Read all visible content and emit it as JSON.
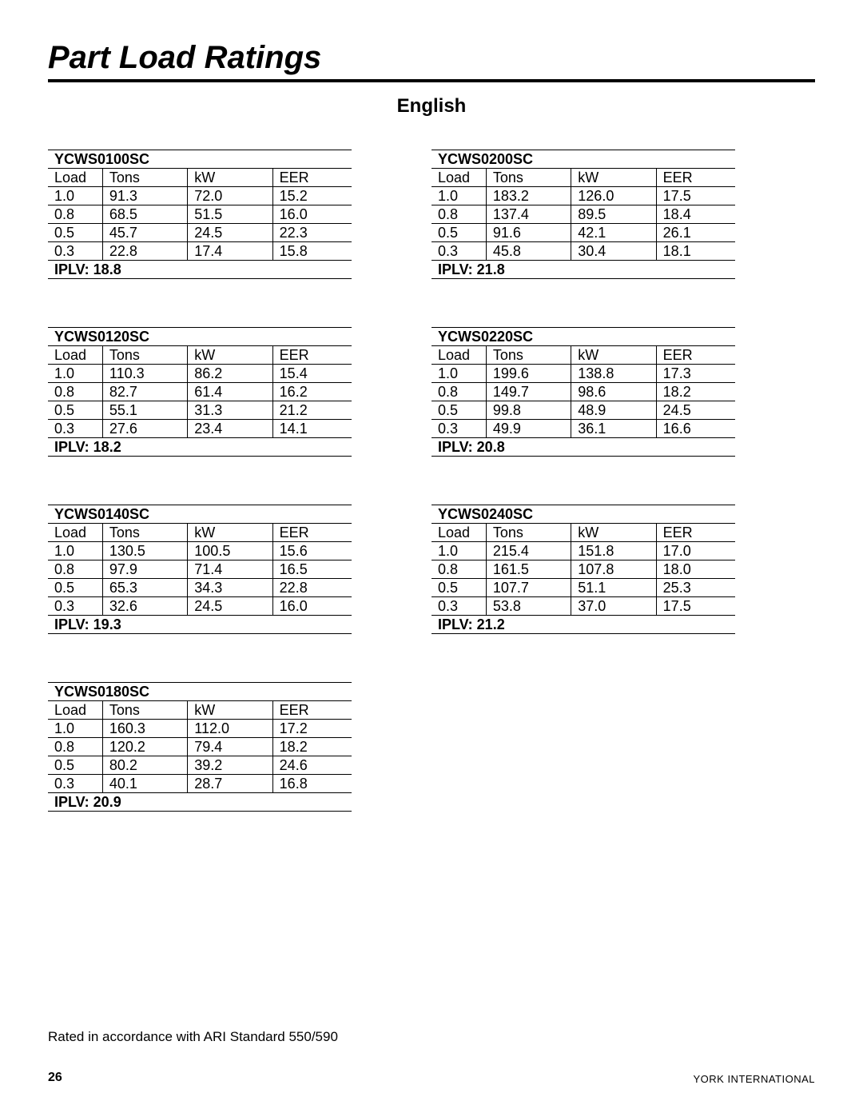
{
  "title": "Part Load Ratings",
  "subtitle": "English",
  "columns_header": [
    "Load",
    "Tons",
    "kW",
    "EER"
  ],
  "iplv_label": "IPLV:",
  "left_tables": [
    {
      "model": "YCWS0100SC",
      "rows": [
        [
          "1.0",
          "91.3",
          "72.0",
          "15.2"
        ],
        [
          "0.8",
          "68.5",
          "51.5",
          "16.0"
        ],
        [
          "0.5",
          "45.7",
          "24.5",
          "22.3"
        ],
        [
          "0.3",
          "22.8",
          "17.4",
          "15.8"
        ]
      ],
      "iplv": "18.8"
    },
    {
      "model": "YCWS0120SC",
      "rows": [
        [
          "1.0",
          "110.3",
          "86.2",
          "15.4"
        ],
        [
          "0.8",
          "82.7",
          "61.4",
          "16.2"
        ],
        [
          "0.5",
          "55.1",
          "31.3",
          "21.2"
        ],
        [
          "0.3",
          "27.6",
          "23.4",
          "14.1"
        ]
      ],
      "iplv": "18.2"
    },
    {
      "model": "YCWS0140SC",
      "rows": [
        [
          "1.0",
          "130.5",
          "100.5",
          "15.6"
        ],
        [
          "0.8",
          "97.9",
          "71.4",
          "16.5"
        ],
        [
          "0.5",
          "65.3",
          "34.3",
          "22.8"
        ],
        [
          "0.3",
          "32.6",
          "24.5",
          "16.0"
        ]
      ],
      "iplv": "19.3"
    },
    {
      "model": "YCWS0180SC",
      "rows": [
        [
          "1.0",
          "160.3",
          "112.0",
          "17.2"
        ],
        [
          "0.8",
          "120.2",
          "79.4",
          "18.2"
        ],
        [
          "0.5",
          "80.2",
          "39.2",
          "24.6"
        ],
        [
          "0.3",
          "40.1",
          "28.7",
          "16.8"
        ]
      ],
      "iplv": " 20.9"
    }
  ],
  "right_tables": [
    {
      "model": "YCWS0200SC",
      "rows": [
        [
          "1.0",
          "183.2",
          "126.0",
          "17.5"
        ],
        [
          "0.8",
          "137.4",
          "89.5",
          "18.4"
        ],
        [
          "0.5",
          "91.6",
          "42.1",
          "26.1"
        ],
        [
          "0.3",
          "45.8",
          "30.4",
          "18.1"
        ]
      ],
      "iplv": "21.8"
    },
    {
      "model": "YCWS0220SC",
      "rows": [
        [
          "1.0",
          "199.6",
          "138.8",
          "17.3"
        ],
        [
          "0.8",
          "149.7",
          "98.6",
          "18.2"
        ],
        [
          "0.5",
          "99.8",
          "48.9",
          "24.5"
        ],
        [
          "0.3",
          "49.9",
          "36.1",
          "16.6"
        ]
      ],
      "iplv": "20.8"
    },
    {
      "model": "YCWS0240SC",
      "rows": [
        [
          "1.0",
          "215.4",
          "151.8",
          "17.0"
        ],
        [
          "0.8",
          "161.5",
          "107.8",
          "18.0"
        ],
        [
          "0.5",
          "107.7",
          "51.1",
          "25.3"
        ],
        [
          "0.3",
          "53.8",
          "37.0",
          "17.5"
        ]
      ],
      "iplv": "21.2"
    }
  ],
  "footnote": "Rated in accordance with ARI Standard 550/590",
  "page_number": "26",
  "brand": "YORK INTERNATIONAL",
  "col_widths_pct": [
    18,
    28,
    28,
    26
  ]
}
